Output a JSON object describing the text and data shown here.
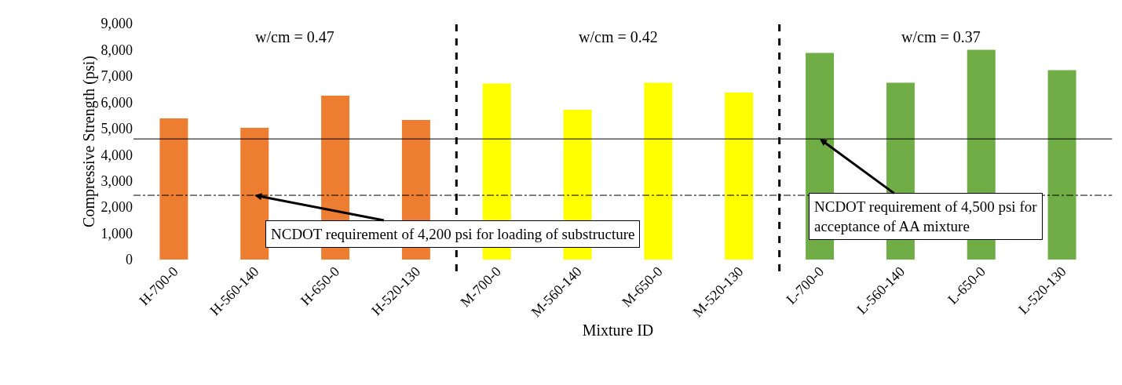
{
  "chart_data": {
    "type": "bar",
    "xlabel": "Mixture ID",
    "ylabel": "Compressive Strength (psi)",
    "categories": [
      "H-700-0",
      "H-560-140",
      "H-650-0",
      "H-520-130",
      "M-700-0",
      "M-560-140",
      "M-650-0",
      "M-520-130",
      "L-700-0",
      "L-560-140",
      "L-650-0",
      "L-520-130"
    ],
    "values": [
      5380,
      5020,
      6250,
      5320,
      6710,
      5710,
      6740,
      6370,
      7880,
      6740,
      8000,
      7220
    ],
    "colors": [
      "#ed7d31",
      "#ed7d31",
      "#ed7d31",
      "#ed7d31",
      "#ffff00",
      "#ffff00",
      "#ffff00",
      "#ffff00",
      "#70ad47",
      "#70ad47",
      "#70ad47",
      "#70ad47"
    ],
    "ylim": [
      0,
      9000
    ],
    "yticks": [
      0,
      {
        "value": 1000,
        "label": "1,000"
      },
      {
        "value": 2000,
        "label": "2,000"
      },
      {
        "value": 3000,
        "label": "3,000"
      },
      {
        "value": 4000,
        "label": "4,000"
      },
      {
        "value": 5000,
        "label": "5,000"
      },
      {
        "value": 6000,
        "label": "6,000"
      },
      {
        "value": 7000,
        "label": "7,000"
      },
      {
        "value": 8000,
        "label": "8,000"
      },
      {
        "value": 9000,
        "label": "9,000"
      }
    ],
    "grid": false,
    "ref_lines": [
      {
        "axis": "y",
        "value": 4600,
        "color": "#000000",
        "line_style": "solid"
      },
      {
        "axis": "y",
        "value": 2450,
        "color": "#000000",
        "line_style": "dashdot"
      }
    ],
    "annotations": [
      "w/cm = 0.47",
      "w/cm = 0.42",
      "w/cm = 0.37",
      {
        "text": "NCDOT requirement of 4,200 psi for loading of substructure",
        "x": "H-560-140",
        "y": 2450
      },
      {
        "text": "NCDOT requirement of 4,500 psi for\nacceptance of AA mixture",
        "x": "L-700-0",
        "y": 4600
      }
    ]
  }
}
